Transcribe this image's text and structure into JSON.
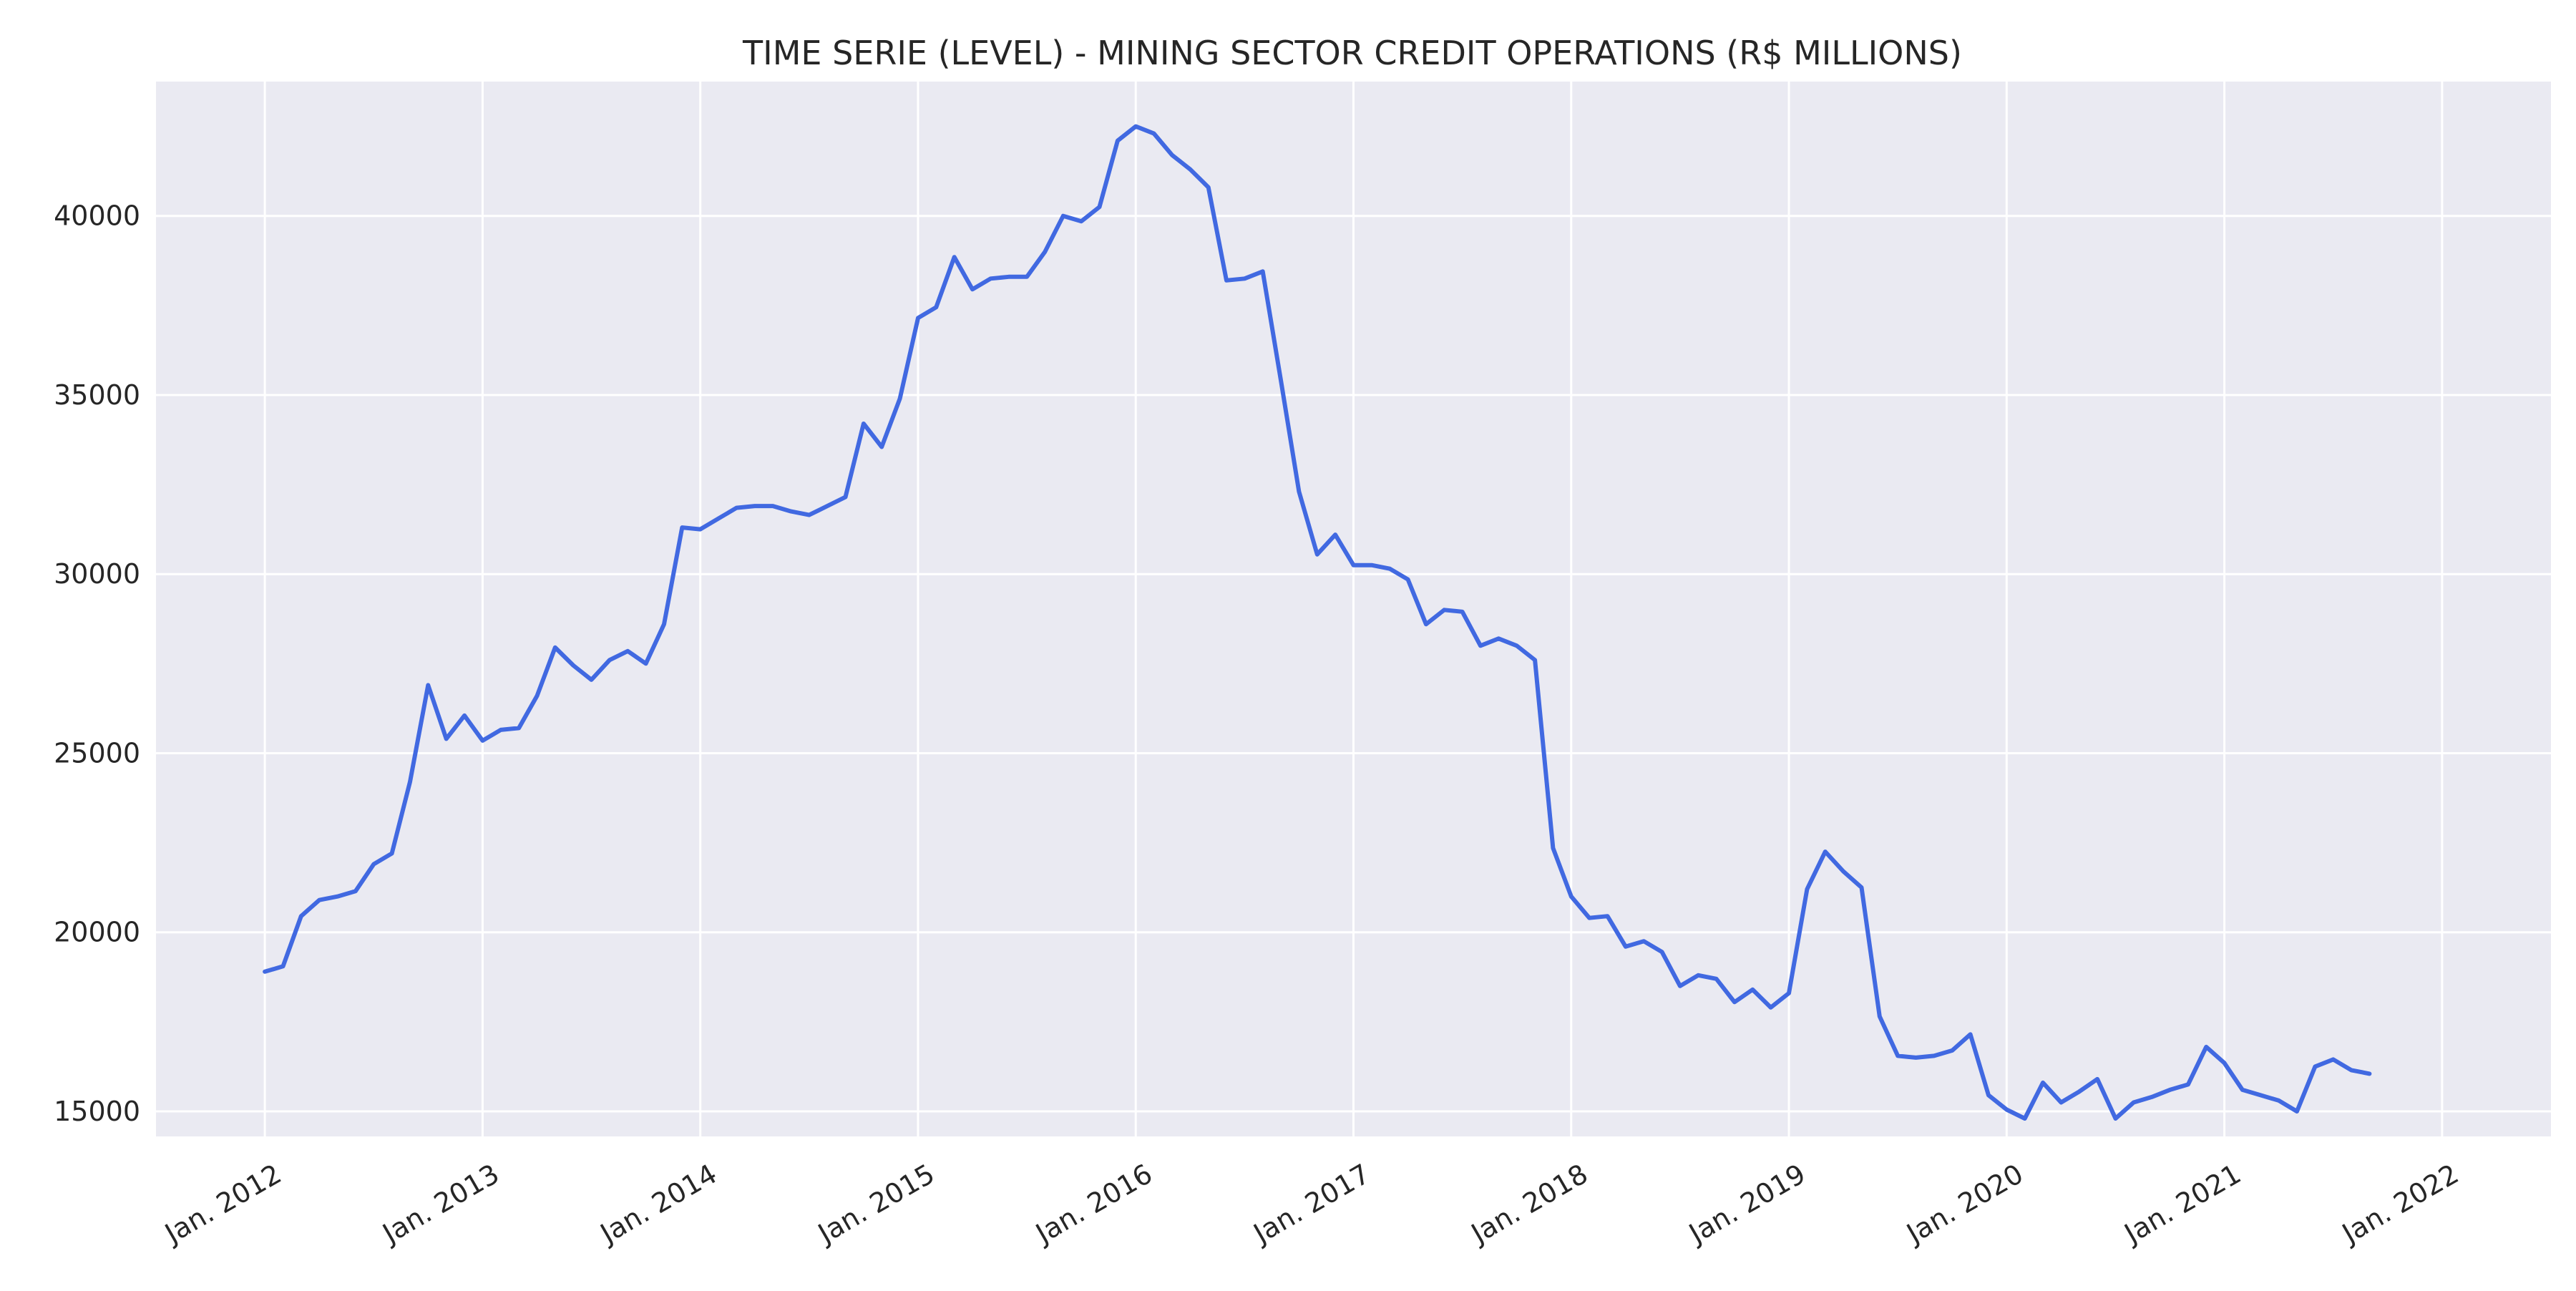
{
  "chart_data": {
    "type": "line",
    "title": "TIME SERIE (LEVEL) - MINING SECTOR CREDIT OPERATIONS (R$ MILLIONS)",
    "xlabel": "",
    "ylabel": "",
    "x_ticks": [
      {
        "date": "2012-01",
        "label": "Jan. 2012"
      },
      {
        "date": "2013-01",
        "label": "Jan. 2013"
      },
      {
        "date": "2014-01",
        "label": "Jan. 2014"
      },
      {
        "date": "2015-01",
        "label": "Jan. 2015"
      },
      {
        "date": "2016-01",
        "label": "Jan. 2016"
      },
      {
        "date": "2017-01",
        "label": "Jan. 2017"
      },
      {
        "date": "2018-01",
        "label": "Jan. 2018"
      },
      {
        "date": "2019-01",
        "label": "Jan. 2019"
      },
      {
        "date": "2020-01",
        "label": "Jan. 2020"
      },
      {
        "date": "2021-01",
        "label": "Jan. 2021"
      },
      {
        "date": "2022-01",
        "label": "Jan. 2022"
      }
    ],
    "y_ticks": [
      15000,
      20000,
      25000,
      30000,
      35000,
      40000
    ],
    "xlim": [
      "2011-07",
      "2022-07"
    ],
    "ylim": [
      14300,
      43750
    ],
    "grid": true,
    "colors": {
      "background": "#eaeaf2",
      "grid": "#ffffff",
      "line": "#4169e1"
    },
    "series": [
      {
        "x": [
          "2012-01",
          "2012-02",
          "2012-03",
          "2012-04",
          "2012-05",
          "2012-06",
          "2012-07",
          "2012-08",
          "2012-09",
          "2012-10",
          "2012-11",
          "2012-12",
          "2013-01",
          "2013-02",
          "2013-03",
          "2013-04",
          "2013-05",
          "2013-06",
          "2013-07",
          "2013-08",
          "2013-09",
          "2013-10",
          "2013-11",
          "2013-12",
          "2014-01",
          "2014-02",
          "2014-03",
          "2014-04",
          "2014-05",
          "2014-06",
          "2014-07",
          "2014-08",
          "2014-09",
          "2014-10",
          "2014-11",
          "2014-12",
          "2015-01",
          "2015-02",
          "2015-03",
          "2015-04",
          "2015-05",
          "2015-06",
          "2015-07",
          "2015-08",
          "2015-09",
          "2015-10",
          "2015-11",
          "2015-12",
          "2016-01",
          "2016-02",
          "2016-03",
          "2016-04",
          "2016-05",
          "2016-06",
          "2016-07",
          "2016-08",
          "2016-09",
          "2016-10",
          "2016-11",
          "2016-12",
          "2017-01",
          "2017-02",
          "2017-03",
          "2017-04",
          "2017-05",
          "2017-06",
          "2017-07",
          "2017-08",
          "2017-09",
          "2017-10",
          "2017-11",
          "2017-12",
          "2018-01",
          "2018-02",
          "2018-03",
          "2018-04",
          "2018-05",
          "2018-06",
          "2018-07",
          "2018-08",
          "2018-09",
          "2018-10",
          "2018-11",
          "2018-12",
          "2019-01",
          "2019-02",
          "2019-03",
          "2019-04",
          "2019-05",
          "2019-06",
          "2019-07",
          "2019-08",
          "2019-09",
          "2019-10",
          "2019-11",
          "2019-12",
          "2020-01",
          "2020-02",
          "2020-03",
          "2020-04",
          "2020-05",
          "2020-06",
          "2020-07",
          "2020-08",
          "2020-09",
          "2020-10",
          "2020-11",
          "2020-12",
          "2021-01",
          "2021-02",
          "2021-03",
          "2021-04",
          "2021-05",
          "2021-06",
          "2021-07",
          "2021-08",
          "2021-09"
        ],
        "values": [
          18900,
          19050,
          20450,
          20900,
          21000,
          21150,
          21900,
          22200,
          24200,
          26900,
          25400,
          26050,
          25350,
          25650,
          25700,
          26600,
          27950,
          27450,
          27050,
          27600,
          27850,
          27500,
          28600,
          31300,
          31250,
          31550,
          31850,
          31900,
          31900,
          31750,
          31650,
          31900,
          32150,
          34200,
          33550,
          34900,
          37150,
          37450,
          38850,
          37950,
          38250,
          38300,
          38300,
          39000,
          40000,
          39850,
          40250,
          42100,
          42500,
          42300,
          41700,
          41300,
          40800,
          38200,
          38250,
          38450,
          35400,
          32300,
          30550,
          31100,
          30250,
          30250,
          30150,
          29850,
          28600,
          29000,
          28950,
          28000,
          28200,
          28000,
          27600,
          22350,
          21000,
          20400,
          20450,
          19600,
          19750,
          19450,
          18500,
          18800,
          18700,
          18050,
          18400,
          17900,
          18300,
          21200,
          22250,
          21700,
          21250,
          17650,
          16550,
          16500,
          16550,
          16700,
          17150,
          15450,
          15050,
          14800,
          15800,
          15250,
          15550,
          15900,
          14800,
          15250,
          15400,
          15600,
          15750,
          16800,
          16350,
          15600,
          15450,
          15300,
          15000,
          16250,
          16450,
          16150,
          16050
        ]
      }
    ]
  }
}
